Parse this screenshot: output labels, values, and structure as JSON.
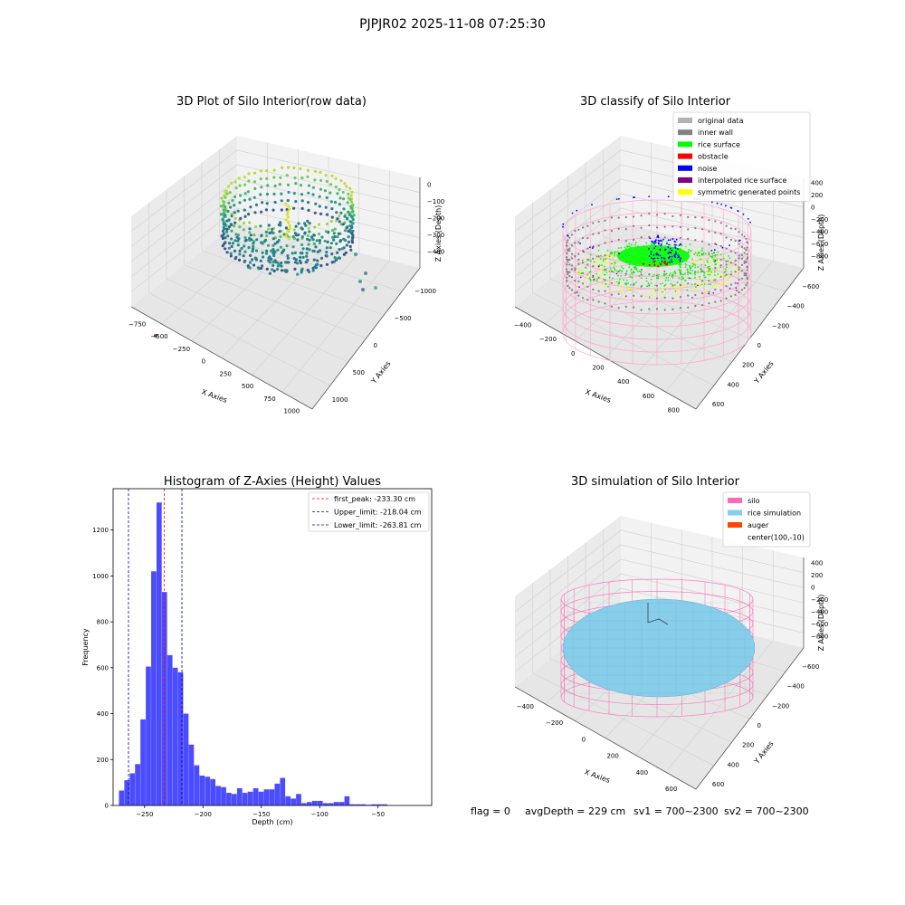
{
  "suptitle": "PJPJR02 2025-11-08 07:25:30",
  "footer": {
    "flag": "flag = 0",
    "avg_depth": "avgDepth = 229 cm",
    "sv1": "sv1 = 700~2300",
    "sv2": "sv2 = 700~2300"
  },
  "colors": {
    "pane": "#f2f2f2",
    "pane_dark": "#e6e6e6",
    "grid": "#d0d0d0",
    "hist_bar": "#0000ff",
    "first_peak": "#ff0000",
    "limits": "#0000bb",
    "silo": "#ff69b4",
    "rice_sim": "#87ceeb"
  },
  "chart_data": [
    {
      "type": "scatter",
      "title": "3D Plot of Silo Interior(row data)",
      "xlabel": "X Axies",
      "ylabel": "Y Axies",
      "zlabel": "Z Axies (Depth)",
      "xticks": [
        "−750",
        "−500",
        "−250",
        "0",
        "250",
        "500",
        "750",
        "1000"
      ],
      "yticks": [
        "1000",
        "500",
        "0",
        "−500",
        "−1000"
      ],
      "zticks": [
        "0",
        "−100",
        "−200",
        "−300",
        "−400"
      ],
      "colormap": "viridis"
    },
    {
      "type": "scatter",
      "title": "3D classify of Silo Interior",
      "xlabel": "X Axies",
      "ylabel": "Y Axies",
      "zlabel": "Z Axies (Depth)",
      "xticks": [
        "−400",
        "−200",
        "0",
        "200",
        "400",
        "600",
        "800"
      ],
      "yticks": [
        "600",
        "400",
        "200",
        "0",
        "−200",
        "−400",
        "−600"
      ],
      "zticks": [
        "400",
        "200",
        "0",
        "−200",
        "−400",
        "−600",
        "−800"
      ],
      "legend_position": "top-right",
      "legend": [
        {
          "label": "original data",
          "color": "#b3b3b3"
        },
        {
          "label": "inner wall",
          "color": "#808080"
        },
        {
          "label": "rice surface",
          "color": "#00ff00"
        },
        {
          "label": "obstacle",
          "color": "#ff0000"
        },
        {
          "label": "noise",
          "color": "#0000ff"
        },
        {
          "label": "interpolated rice surface",
          "color": "#800080"
        },
        {
          "label": "symmetric generated points",
          "color": "#ffff00"
        }
      ]
    },
    {
      "type": "bar",
      "title": "Histogram of Z-Axies (Height) Values",
      "xlabel": "Depth (cm)",
      "ylabel": "Frequency",
      "xlim": [
        -277,
        -4
      ],
      "ylim": [
        0,
        1380
      ],
      "xticks": [
        -250,
        -200,
        -150,
        -100,
        -50
      ],
      "xtick_labels": [
        "−250",
        "−200",
        "−150",
        "−100",
        "−50"
      ],
      "yticks": [
        0,
        200,
        400,
        600,
        800,
        1000,
        1200
      ],
      "bin_start": -272,
      "bin_width": 4.6,
      "values": [
        65,
        110,
        140,
        180,
        375,
        605,
        1020,
        1320,
        930,
        655,
        600,
        580,
        400,
        265,
        175,
        130,
        125,
        115,
        85,
        80,
        55,
        50,
        75,
        55,
        60,
        75,
        60,
        70,
        70,
        95,
        120,
        40,
        30,
        50,
        10,
        15,
        20,
        20,
        10,
        10,
        15,
        15,
        40,
        5,
        5,
        5,
        3,
        5,
        5,
        5
      ],
      "vlines": [
        {
          "label": "first_peak: -233.30 cm",
          "x": -233.3,
          "color": "#ff0000"
        },
        {
          "label": "Upper_limit: -218.04 cm",
          "x": -218.04,
          "color": "#0000bb"
        },
        {
          "label": "Lower_limit: -263.81 cm",
          "x": -263.81,
          "color": "#0000bb"
        }
      ],
      "legend_position": "top-right"
    },
    {
      "type": "scatter",
      "title": "3D simulation of Silo Interior",
      "xlabel": "X Axies",
      "ylabel": "Y Axies",
      "zlabel": "Z Axies (Depth)",
      "xticks": [
        "−400",
        "−200",
        "0",
        "200",
        "400",
        "600"
      ],
      "yticks": [
        "600",
        "400",
        "200",
        "0",
        "−200",
        "−400",
        "−600"
      ],
      "zticks": [
        "400",
        "200",
        "0",
        "−200",
        "−400",
        "−600",
        "−800"
      ],
      "legend_position": "top-right",
      "legend": [
        {
          "label": "silo",
          "color": "#ff69b4"
        },
        {
          "label": "rice simulation",
          "color": "#87ceeb"
        },
        {
          "label": "auger",
          "color": "#ff4500"
        },
        {
          "label": "center(100,-10)",
          "color": ""
        }
      ]
    }
  ]
}
